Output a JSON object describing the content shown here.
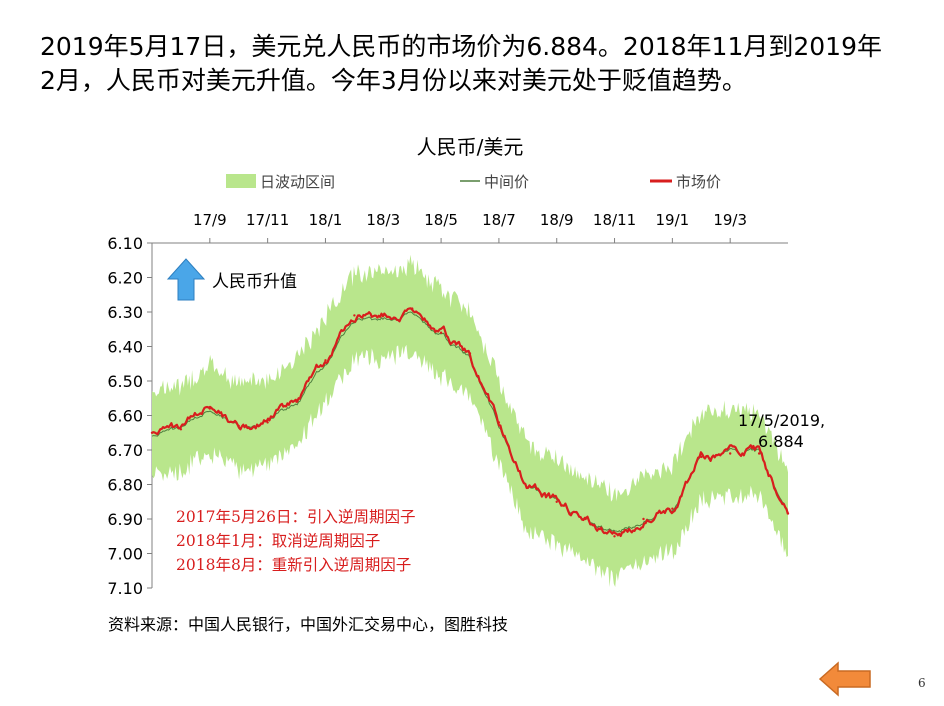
{
  "headline": {
    "line1": "2019年5月17日，美元兑人民币的市场价为6.884。2018年11月到2019年",
    "line2": "2月，人民币对美元升值。今年3月份以来对美元处于贬值趋势。"
  },
  "slide_number": "6",
  "colors": {
    "band": "#b9e68c",
    "central": "#4f7f3f",
    "market": "#d81e1e",
    "note": "#d81e1e",
    "arrow_up": "#4aa6e8",
    "arrow_back": "#f28a3a"
  },
  "icons": {
    "appreciation_arrow": "up-arrow-icon",
    "back_button": "left-arrow-icon"
  },
  "chart_data": {
    "type": "line",
    "title": "人民币/美元",
    "legend": {
      "placement": "top",
      "items": [
        {
          "label": "日波动区间",
          "kind": "band"
        },
        {
          "label": "中间价",
          "kind": "central"
        },
        {
          "label": "市场价",
          "kind": "market"
        }
      ]
    },
    "x_axis": {
      "position": "top",
      "ticks": [
        "17/9",
        "17/11",
        "18/1",
        "18/3",
        "18/5",
        "18/7",
        "18/9",
        "18/11",
        "19/1",
        "19/3"
      ],
      "range": [
        "2017/7",
        "2019/5"
      ]
    },
    "y_axis": {
      "inverted": true,
      "range": [
        6.1,
        7.1
      ],
      "ticks": [
        "6.10",
        "6.20",
        "6.30",
        "6.40",
        "6.50",
        "6.60",
        "6.70",
        "6.80",
        "6.90",
        "7.00",
        "7.10"
      ]
    },
    "grid": false,
    "series": [
      {
        "name": "市场价",
        "x": [
          "2017/7",
          "2017/8",
          "2017/9",
          "2017/10",
          "2017/11",
          "2017/12",
          "2018/1",
          "2018/2",
          "2018/3",
          "2018/4",
          "2018/5",
          "2018/6",
          "2018/7",
          "2018/8",
          "2018/9",
          "2018/10",
          "2018/11",
          "2018/12",
          "2019/1",
          "2019/2",
          "2019/3",
          "2019/4",
          "2019/5"
        ],
        "values": [
          6.65,
          6.64,
          6.58,
          6.63,
          6.62,
          6.56,
          6.44,
          6.31,
          6.31,
          6.29,
          6.36,
          6.42,
          6.62,
          6.81,
          6.85,
          6.9,
          6.95,
          6.9,
          6.87,
          6.72,
          6.71,
          6.71,
          6.884
        ]
      },
      {
        "name": "中间价",
        "x": [
          "2017/7",
          "2017/8",
          "2017/9",
          "2017/10",
          "2017/11",
          "2017/12",
          "2018/1",
          "2018/2",
          "2018/3",
          "2018/4",
          "2018/5",
          "2018/6",
          "2018/7",
          "2018/8",
          "2018/9",
          "2018/10",
          "2018/11",
          "2018/12",
          "2019/1",
          "2019/2",
          "2019/3",
          "2019/4",
          "2019/5"
        ],
        "values": [
          6.66,
          6.64,
          6.59,
          6.63,
          6.62,
          6.57,
          6.45,
          6.32,
          6.32,
          6.3,
          6.37,
          6.43,
          6.63,
          6.81,
          6.85,
          6.9,
          6.94,
          6.9,
          6.87,
          6.72,
          6.71,
          6.71,
          6.88
        ]
      }
    ],
    "annotations": {
      "appreciation": "人民币升值",
      "last_point": {
        "line1": "17/5/2019,",
        "line2": "6.884"
      },
      "policy_notes": [
        "2017年5月26日：引入逆周期因子",
        "2018年1月：取消逆周期因子",
        "2018年8月：重新引入逆周期因子"
      ]
    },
    "source": "资料来源：中国人民银行，中国外汇交易中心，图胜科技"
  }
}
